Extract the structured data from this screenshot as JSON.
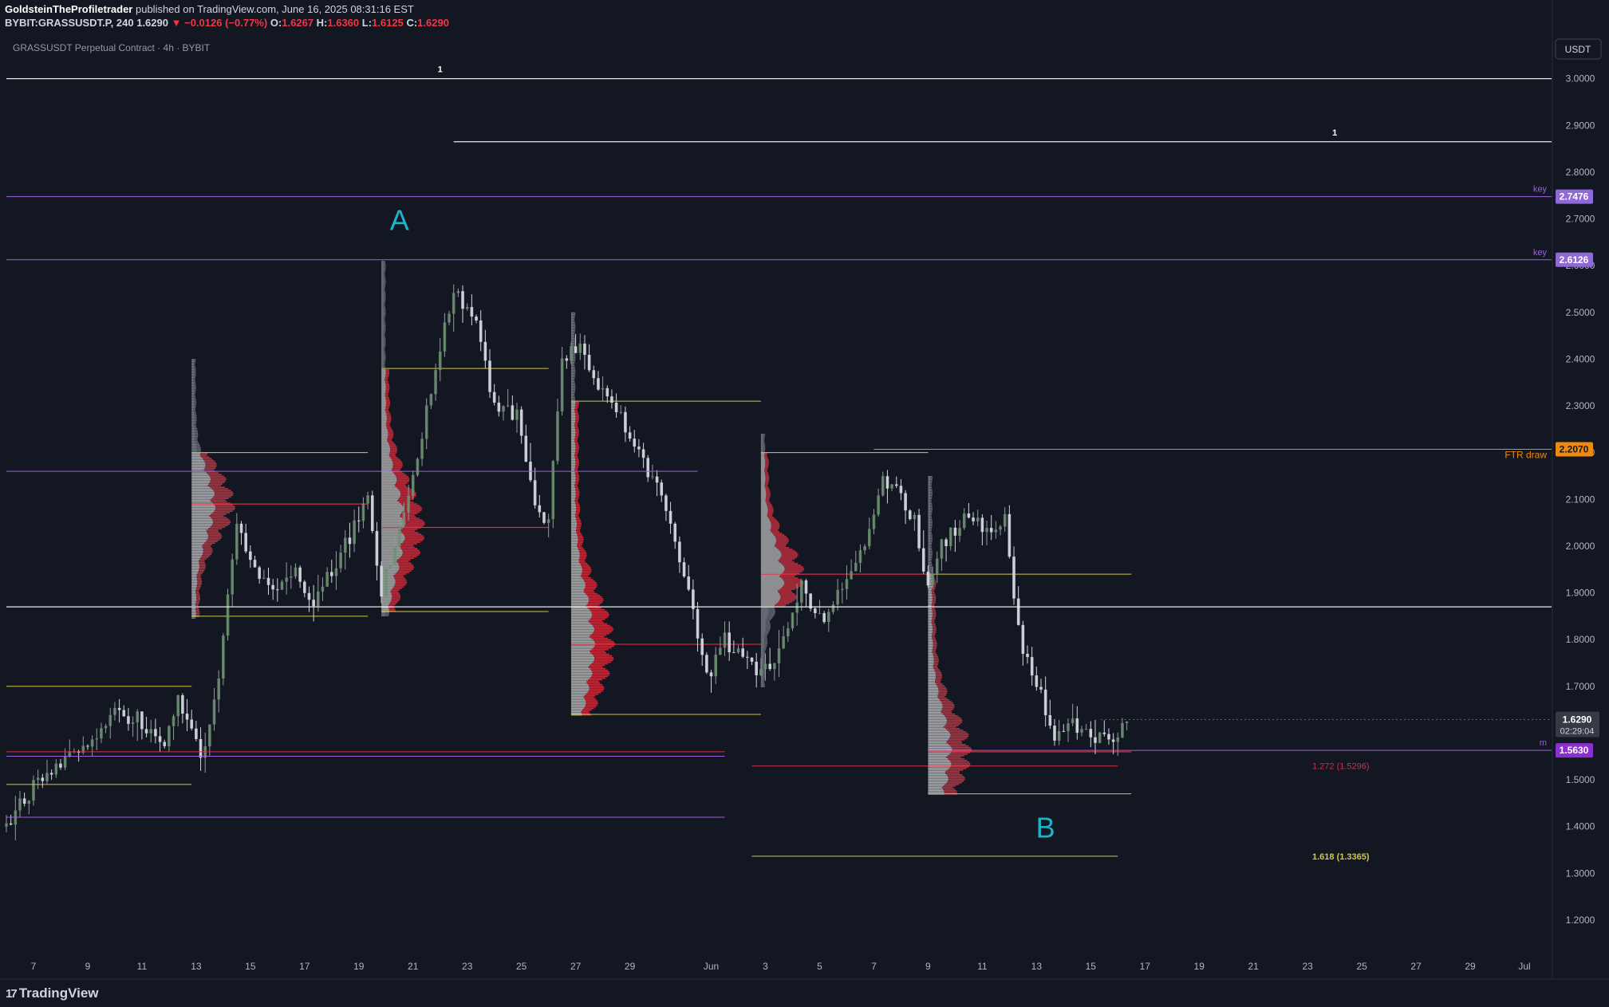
{
  "header": {
    "author": "GoldsteinTheProfiletrader",
    "published": " published on TradingView.com, June 16, 2025 08:31:16 EST",
    "symbol": "BYBIT:GRASSUSDT.P, 240",
    "last": "1.6290",
    "arrow": "▼",
    "change": "−0.0126 (−0.77%)",
    "o_label": "O:",
    "o": "1.6267",
    "h_label": "H:",
    "h": "1.6360",
    "l_label": "L:",
    "l": "1.6125",
    "c_label": "C:",
    "c": "1.6290"
  },
  "legend_title": "GRASSUSDT Perpetual Contract · 4h · BYBIT",
  "footer": {
    "logo_mark": "17",
    "brand": "TradingView"
  },
  "currency_badge": "USDT",
  "colors": {
    "background": "#131722",
    "up": "#9598a1",
    "down": "#d1d4dc",
    "red_profile": "#d3303f",
    "grey_profile": "#8c8f98",
    "purple": "#9c5fe0",
    "yellow": "#d4c646",
    "orange": "#ef8a10",
    "cyan": "#1fb3c8",
    "white": "#e8e8e8"
  },
  "chart_data": {
    "type": "candlestick",
    "timeframe": "4h",
    "x_axis": {
      "start_date": "2025-05-06",
      "end_date": "2025-07-02",
      "tick_labels": [
        {
          "date": "2025-05-07",
          "label": "7"
        },
        {
          "date": "2025-05-09",
          "label": "9"
        },
        {
          "date": "2025-05-11",
          "label": "11"
        },
        {
          "date": "2025-05-13",
          "label": "13"
        },
        {
          "date": "2025-05-15",
          "label": "15"
        },
        {
          "date": "2025-05-17",
          "label": "17"
        },
        {
          "date": "2025-05-19",
          "label": "19"
        },
        {
          "date": "2025-05-21",
          "label": "21"
        },
        {
          "date": "2025-05-23",
          "label": "23"
        },
        {
          "date": "2025-05-25",
          "label": "25"
        },
        {
          "date": "2025-05-27",
          "label": "27"
        },
        {
          "date": "2025-05-29",
          "label": "29"
        },
        {
          "date": "2025-06-01",
          "label": "Jun"
        },
        {
          "date": "2025-06-03",
          "label": "3"
        },
        {
          "date": "2025-06-05",
          "label": "5"
        },
        {
          "date": "2025-06-07",
          "label": "7"
        },
        {
          "date": "2025-06-09",
          "label": "9"
        },
        {
          "date": "2025-06-11",
          "label": "11"
        },
        {
          "date": "2025-06-13",
          "label": "13"
        },
        {
          "date": "2025-06-15",
          "label": "15"
        },
        {
          "date": "2025-06-17",
          "label": "17"
        },
        {
          "date": "2025-06-19",
          "label": "19"
        },
        {
          "date": "2025-06-21",
          "label": "21"
        },
        {
          "date": "2025-06-23",
          "label": "23"
        },
        {
          "date": "2025-06-25",
          "label": "25"
        },
        {
          "date": "2025-06-27",
          "label": "27"
        },
        {
          "date": "2025-06-29",
          "label": "29"
        },
        {
          "date": "2025-07-01",
          "label": "Jul"
        }
      ]
    },
    "y_axis": {
      "range": [
        1.13,
        3.1
      ],
      "ticks": [
        "1.2000",
        "1.3000",
        "1.4000",
        "1.5000",
        "1.6000",
        "1.7000",
        "1.8000",
        "1.9000",
        "2.0000",
        "2.1000",
        "2.2000",
        "2.3000",
        "2.4000",
        "2.5000",
        "2.6000",
        "2.7000",
        "2.8000",
        "2.9000",
        "3.0000"
      ]
    },
    "price_path": [
      [
        "2025-05-06T00:00",
        1.4
      ],
      [
        "2025-05-07T00:00",
        1.49
      ],
      [
        "2025-05-08T00:00",
        1.53
      ],
      [
        "2025-05-09T00:00",
        1.58
      ],
      [
        "2025-05-10T00:00",
        1.65
      ],
      [
        "2025-05-11T00:00",
        1.62
      ],
      [
        "2025-05-11T20:00",
        1.56
      ],
      [
        "2025-05-12T08:00",
        1.68
      ],
      [
        "2025-05-13T04:00",
        1.54
      ],
      [
        "2025-05-13T20:00",
        1.72
      ],
      [
        "2025-05-14T12:00",
        2.05
      ],
      [
        "2025-05-15T00:00",
        1.96
      ],
      [
        "2025-05-15T20:00",
        1.9
      ],
      [
        "2025-05-16T12:00",
        1.95
      ],
      [
        "2025-05-17T08:00",
        1.88
      ],
      [
        "2025-05-18T12:00",
        2.0
      ],
      [
        "2025-05-19T08:00",
        2.1
      ],
      [
        "2025-05-19T20:00",
        1.9
      ],
      [
        "2025-05-20T12:00",
        2.04
      ],
      [
        "2025-05-21T04:00",
        2.2
      ],
      [
        "2025-05-21T20:00",
        2.38
      ],
      [
        "2025-05-22T12:00",
        2.55
      ],
      [
        "2025-05-23T08:00",
        2.48
      ],
      [
        "2025-05-24T00:00",
        2.3
      ],
      [
        "2025-05-24T20:00",
        2.28
      ],
      [
        "2025-05-25T12:00",
        2.1
      ],
      [
        "2025-05-26T00:00",
        2.05
      ],
      [
        "2025-05-26T12:00",
        2.4
      ],
      [
        "2025-05-27T04:00",
        2.43
      ],
      [
        "2025-05-27T20:00",
        2.34
      ],
      [
        "2025-05-28T16:00",
        2.28
      ],
      [
        "2025-05-29T12:00",
        2.18
      ],
      [
        "2025-05-30T12:00",
        2.05
      ],
      [
        "2025-05-31T04:00",
        1.9
      ],
      [
        "2025-05-31T20:00",
        1.72
      ],
      [
        "2025-06-01T12:00",
        1.8
      ],
      [
        "2025-06-02T08:00",
        1.76
      ],
      [
        "2025-06-02T20:00",
        1.73
      ],
      [
        "2025-06-03T12:00",
        1.78
      ],
      [
        "2025-06-04T08:00",
        1.92
      ],
      [
        "2025-06-05T04:00",
        1.82
      ],
      [
        "2025-06-05T20:00",
        1.92
      ],
      [
        "2025-06-06T12:00",
        1.98
      ],
      [
        "2025-06-07T08:00",
        2.14
      ],
      [
        "2025-06-07T20:00",
        2.12
      ],
      [
        "2025-06-08T12:00",
        2.05
      ],
      [
        "2025-06-09T00:00",
        1.92
      ],
      [
        "2025-06-09T12:00",
        2.0
      ],
      [
        "2025-06-10T08:00",
        2.06
      ],
      [
        "2025-06-11T08:00",
        2.02
      ],
      [
        "2025-06-11T20:00",
        2.06
      ],
      [
        "2025-06-12T08:00",
        1.82
      ],
      [
        "2025-06-12T20:00",
        1.72
      ],
      [
        "2025-06-13T04:00",
        1.68
      ],
      [
        "2025-06-13T16:00",
        1.59
      ],
      [
        "2025-06-14T08:00",
        1.62
      ],
      [
        "2025-06-15T00:00",
        1.6
      ],
      [
        "2025-06-15T16:00",
        1.58
      ],
      [
        "2025-06-16T08:00",
        1.63
      ]
    ],
    "volume_profiles": [
      {
        "start": "2025-05-12T20:00",
        "end": "2025-05-19T08:00",
        "low": 1.845,
        "high": 2.4,
        "poc": 2.09,
        "value_area": [
          1.85,
          2.2
        ]
      },
      {
        "start": "2025-05-19T20:00",
        "end": "2025-05-26T00:00",
        "low": 1.85,
        "high": 2.61,
        "poc": 2.04,
        "value_area": [
          1.86,
          2.38
        ]
      },
      {
        "start": "2025-05-26T20:00",
        "end": "2025-06-02T20:00",
        "low": 1.64,
        "high": 2.5,
        "poc": 1.79,
        "value_area": [
          1.64,
          2.31
        ]
      },
      {
        "start": "2025-06-02T20:00",
        "end": "2025-06-09T00:00",
        "low": 1.7,
        "high": 2.24,
        "poc": 1.94,
        "value_area": [
          1.87,
          2.2
        ]
      },
      {
        "start": "2025-06-09T00:00",
        "end": "2025-06-16T12:00",
        "low": 1.47,
        "high": 2.15,
        "poc": 1.56,
        "value_area": [
          1.47,
          1.94
        ]
      }
    ],
    "horizontal_levels": [
      {
        "price": 3.0,
        "color": "white",
        "from": "2025-05-06T00:00",
        "to": "2025-07-02T00:00",
        "label": "1",
        "label_date": "2025-05-22T00:00"
      },
      {
        "price": 2.865,
        "color": "white",
        "from": "2025-05-22T12:00",
        "to": "2025-07-02T00:00",
        "label": "1",
        "label_date": "2025-06-24T00:00"
      },
      {
        "price": 2.7476,
        "color": "purple",
        "from": "2025-05-06T00:00",
        "to": "2025-07-02T00:00",
        "label": "key",
        "badge": "2.7476"
      },
      {
        "price": 2.6126,
        "color": "purple",
        "from": "2025-05-06T00:00",
        "to": "2025-07-02T00:00",
        "label": "key",
        "badge": "2.6126"
      },
      {
        "price": 2.207,
        "color": "orange",
        "from": "2025-06-07T00:00",
        "to": "2025-07-02T00:00",
        "label": "FTR draw",
        "badge": "2.2070"
      },
      {
        "price": 2.16,
        "color": "purple",
        "from": "2025-05-06T00:00",
        "to": "2025-05-31T12:00"
      },
      {
        "price": 1.87,
        "color": "white",
        "from": "2025-05-06T00:00",
        "to": "2025-07-02T00:00"
      },
      {
        "price": 1.56,
        "color": "red",
        "from": "2025-05-06T00:00",
        "to": "2025-06-01T12:00"
      },
      {
        "price": 1.5505,
        "color": "purple",
        "from": "2025-05-06T00:00",
        "to": "2025-06-01T12:00"
      },
      {
        "price": 1.563,
        "color": "purple",
        "from": "2025-06-09T00:00",
        "to": "2025-07-02T00:00",
        "label": "m",
        "badge": "1.5630"
      },
      {
        "price": 1.42,
        "color": "purple",
        "from": "2025-05-06T00:00",
        "to": "2025-06-01T12:00"
      },
      {
        "price": 1.5296,
        "color": "red",
        "from": "2025-06-02T12:00",
        "to": "2025-06-16T00:00",
        "label": "1.272 (1.5296)"
      },
      {
        "price": 1.3365,
        "color": "yellow",
        "from": "2025-06-02T12:00",
        "to": "2025-06-16T00:00",
        "label": "1.618 (1.3365)"
      },
      {
        "price": 1.7,
        "color": "yellow",
        "from": "2025-05-06T00:00",
        "to": "2025-05-12T20:00"
      },
      {
        "price": 1.49,
        "color": "yellow",
        "from": "2025-05-06T00:00",
        "to": "2025-05-12T20:00"
      }
    ],
    "annotations": [
      {
        "text": "A",
        "date": "2025-05-20T12:00",
        "price": 2.7,
        "color": "cyan"
      },
      {
        "text": "B",
        "date": "2025-06-13T08:00",
        "price": 1.4,
        "color": "cyan"
      }
    ],
    "last_price_badge": {
      "price": "1.6290",
      "countdown": "02:29:04",
      "level": 1.629
    },
    "bar_count_seed": 20250616
  }
}
